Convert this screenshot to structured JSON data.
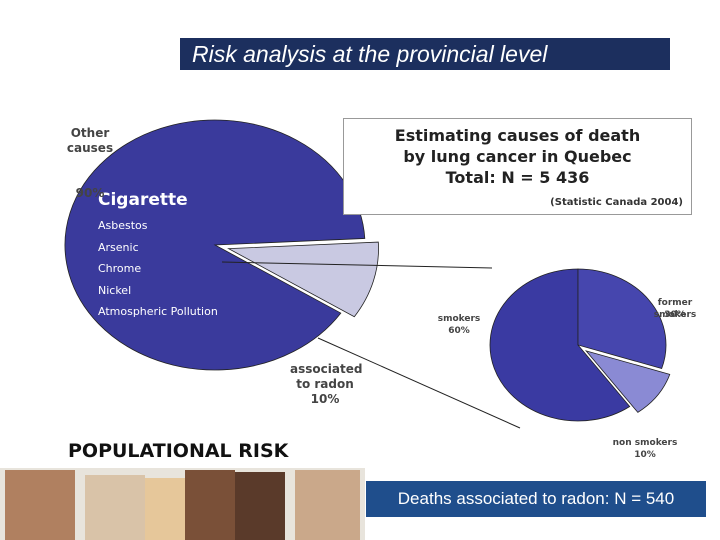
{
  "title": "Risk analysis at the provincial level",
  "info": {
    "title": "Estimating causes of death by lung cancer in Quebec",
    "total": "Total: N = 5 436",
    "source": "(Statistic Canada 2004)"
  },
  "annotations": [
    "Cigarette",
    "Asbestos",
    "Arsenic",
    "Chrome",
    "Nickel",
    "Atmospheric Pollution"
  ],
  "heading": "POPULATIONAL RISK",
  "footer": "Deaths associated to radon: N = 540",
  "chart_data": [
    {
      "type": "pie",
      "categories": [
        "Other causes",
        "associated to radon"
      ],
      "values": [
        90,
        10
      ],
      "value_labels": [
        "90%",
        "10%"
      ],
      "colors": [
        "#3a3a9c",
        "#c9c9e2"
      ]
    },
    {
      "type": "pie",
      "categories": [
        "smokers",
        "former smokers",
        "non smokers"
      ],
      "values": [
        60,
        30,
        10
      ],
      "value_labels": [
        "60%",
        "30%",
        "10%"
      ],
      "colors": [
        "#3a3aa2",
        "#4646ae",
        "#8a8ad4"
      ]
    }
  ]
}
